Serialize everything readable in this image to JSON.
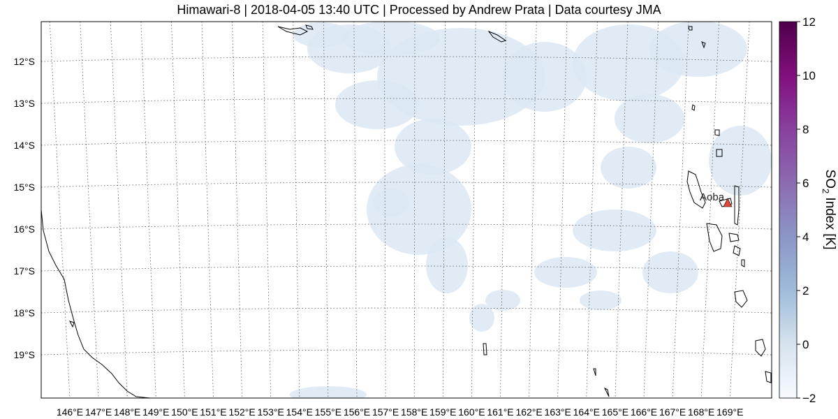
{
  "title": "Himawari-8 | 2018-04-05 13:40 UTC | Processed by Andrew Prata | Data courtesy JMA",
  "map": {
    "lon_labels": [
      "146°E",
      "147°E",
      "148°E",
      "149°E",
      "150°E",
      "151°E",
      "152°E",
      "153°E",
      "154°E",
      "155°E",
      "156°E",
      "157°E",
      "158°E",
      "159°E",
      "160°E",
      "161°E",
      "162°E",
      "163°E",
      "164°E",
      "165°E",
      "166°E",
      "167°E",
      "168°E",
      "169°E"
    ],
    "lat_labels": [
      "12°S",
      "13°S",
      "14°S",
      "15°S",
      "16°S",
      "17°S",
      "18°S",
      "19°S"
    ],
    "volcano": {
      "name": "Aoba",
      "symbol": "triangle",
      "color": "#e0463a"
    },
    "coastline_color": "#000000",
    "gridline_style": "dotted",
    "cloud_color": "#dbe7f3"
  },
  "colorbar": {
    "label_main": "SO",
    "label_sub": "2",
    "label_rest": " Index [K]",
    "ticks": [
      "12",
      "10",
      "8",
      "6",
      "4",
      "2",
      "0",
      "−2"
    ],
    "min": -2,
    "max": 12,
    "colormap": [
      "#f7fbff",
      "#d7e3ee",
      "#9ebcda",
      "#8c96c6",
      "#8c6bb1",
      "#88419d",
      "#810f7c",
      "#4d004b"
    ]
  }
}
